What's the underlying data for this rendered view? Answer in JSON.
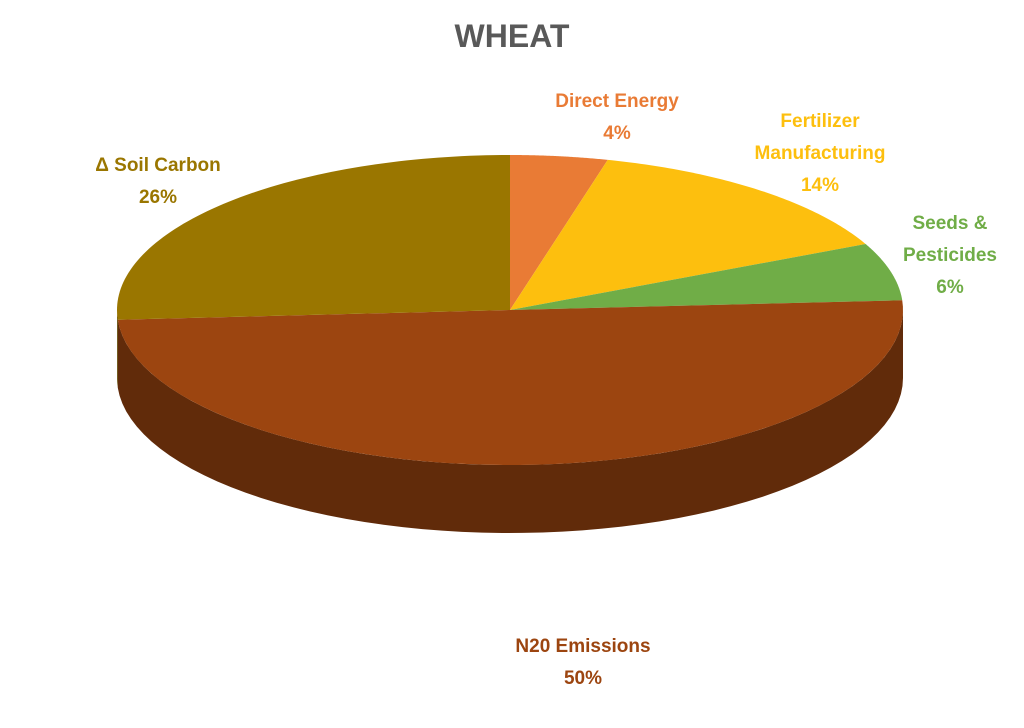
{
  "chart_data": {
    "type": "pie",
    "title": "WHEAT",
    "categories": [
      "Direct Energy",
      "Fertilizer Manufacturing",
      "Seeds & Pesticides",
      "N20 Emissions",
      "Δ Soil Carbon"
    ],
    "values": [
      4,
      14,
      6,
      50,
      26
    ],
    "value_labels": [
      "4%",
      "14%",
      "6%",
      "50%",
      "26%"
    ],
    "colors": [
      "#E97B35",
      "#FDBF0E",
      "#70AD47",
      "#9C4510",
      "#9A7600"
    ]
  }
}
